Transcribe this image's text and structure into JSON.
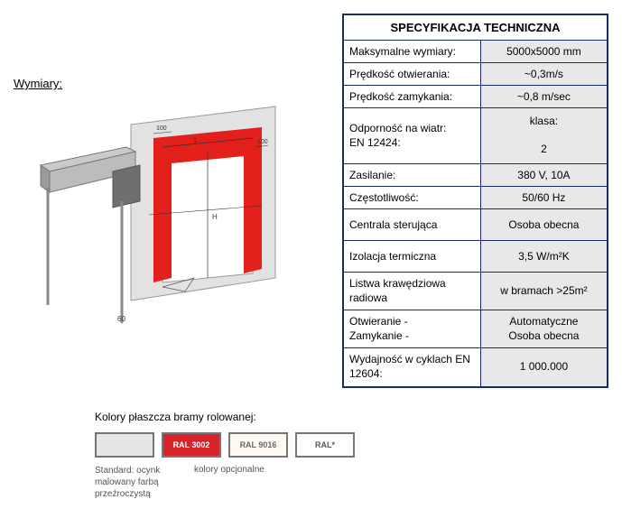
{
  "dimensions_label": "Wymiary:",
  "spec": {
    "title": "SPECYFIKACJA TECHNICZNA",
    "rows": [
      {
        "label": "Maksymalne wymiary:",
        "value": "5000x5000 mm"
      },
      {
        "label": "Prędkość otwierania:",
        "value": "~0,3m/s"
      },
      {
        "label": "Prędkość zamykania:",
        "value": "~0,8 m/sec"
      },
      {
        "label": "Odporność na wiatr:\nEN 12424:",
        "value": "klasa:\n\n2",
        "multi": true,
        "tall": true
      },
      {
        "label": "Zasilanie:",
        "value": "380 V,  10A"
      },
      {
        "label": "Częstotliwość:",
        "value": "50/60 Hz"
      },
      {
        "label": "Centrala sterująca",
        "value": "Osoba obecna",
        "pad": true
      },
      {
        "label": "Izolacja termiczna",
        "value": "3,5 W/m²K",
        "pad": true
      },
      {
        "label": "Listwa krawędziowa radiowa",
        "value": "w bramach >25m²",
        "multi": true
      },
      {
        "label": "Otwieranie   -\nZamykanie   -",
        "value": "Automatyczne\nOsoba obecna",
        "multi": true
      },
      {
        "label": "Wydajność w cyklach EN 12604:",
        "value": "1 000.000",
        "multi": true
      }
    ]
  },
  "colors": {
    "title": "Kolory płaszcza bramy rolowanej:",
    "swatches": [
      {
        "label": "",
        "bg": "#e6e6e6",
        "fg": "#000000"
      },
      {
        "label": "RAL 3002",
        "bg": "#d8232a",
        "fg": "#ffffff"
      },
      {
        "label": "RAL 9016",
        "bg": "#fdf9f0",
        "fg": "#6a6a6a"
      },
      {
        "label": "RAL*",
        "bg": "#ffffff",
        "fg": "#555555"
      }
    ],
    "note_left": "Standard: ocynk malowany farbą przeźroczystą",
    "note_right": "kolory opcjonalne"
  },
  "diagram_colors": {
    "wall": "#e2e2e2",
    "wall_stroke": "#9a9a9a",
    "red": "#e3201b",
    "metal": "#b5b5b5",
    "metal_dark": "#6f6f6f",
    "line": "#333333"
  }
}
